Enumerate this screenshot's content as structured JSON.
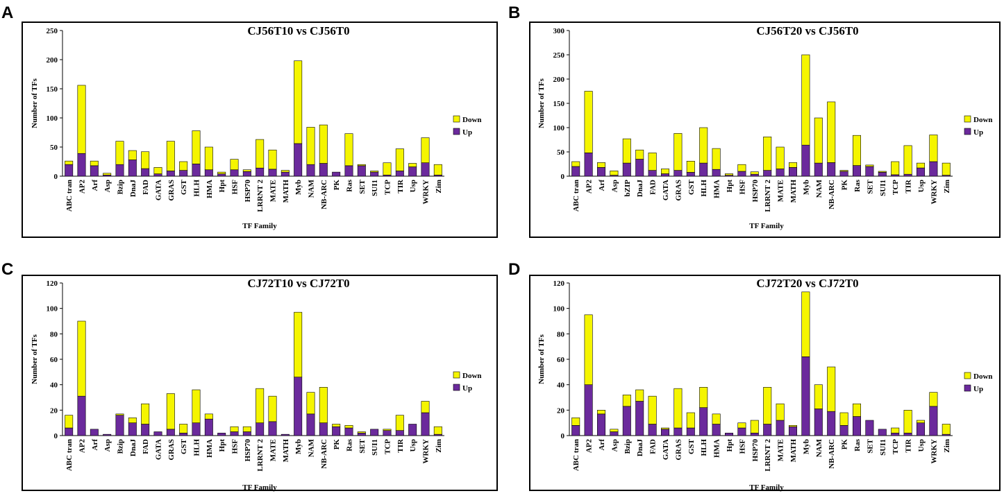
{
  "colors": {
    "up": "#6B2A9C",
    "down": "#F5F500",
    "outline": "#000000"
  },
  "chart_data": [
    {
      "panel": "A",
      "type": "bar",
      "stacked": true,
      "title": "CJ56T10 vs CJ56T0",
      "xlabel": "TF Family",
      "ylabel": "Number of TFs",
      "ylim": [
        0,
        250
      ],
      "ytick_step": 50,
      "legend": {
        "position": "right",
        "labels": [
          "Down",
          "Up"
        ]
      },
      "categories": [
        "ABC tran",
        "AP2",
        "Arf",
        "Asp",
        "Bzip",
        "DnaJ",
        "FAD",
        "GATA",
        "GRAS",
        "GST",
        "HLH",
        "HMA",
        "Hpt",
        "HSF",
        "HSP70",
        "LRRNT 2",
        "MATE",
        "MATH",
        "Myb",
        "NAM",
        "NB-ARC",
        "PK",
        "Ras",
        "SET",
        "SUI1",
        "TCP",
        "TIR",
        "Usp",
        "WRKY",
        "Zim"
      ],
      "series": [
        {
          "name": "Up",
          "values": [
            20,
            39,
            18,
            2,
            20,
            28,
            13,
            4,
            9,
            10,
            21,
            11,
            4,
            11,
            8,
            14,
            12,
            7,
            56,
            20,
            22,
            7,
            18,
            18,
            7,
            2,
            9,
            16,
            23,
            2
          ]
        },
        {
          "name": "Down",
          "values": [
            6,
            117,
            8,
            3,
            40,
            16,
            29,
            11,
            51,
            15,
            57,
            39,
            3,
            18,
            3,
            49,
            33,
            3,
            142,
            64,
            66,
            0,
            55,
            2,
            2,
            21,
            38,
            6,
            43,
            18
          ]
        }
      ]
    },
    {
      "panel": "B",
      "type": "bar",
      "stacked": true,
      "title": "CJ56T20 vs CJ56T0",
      "xlabel": "TF Family",
      "ylabel": "Number of TFs",
      "ylim": [
        0,
        300
      ],
      "ytick_step": 50,
      "legend": {
        "position": "right",
        "labels": [
          "Down",
          "Up"
        ]
      },
      "categories": [
        "ABC tran",
        "AP2",
        "Arf",
        "Asp",
        "bZIP",
        "DnaJ",
        "FAD",
        "GATA",
        "GRAS",
        "GST",
        "HLH",
        "HMA",
        "Hpt",
        "HSF",
        "HSP70",
        "LRRNT 2",
        "MATE",
        "MATH",
        "Myb",
        "NAM",
        "NB-ARC",
        "PK",
        "Ras",
        "SET",
        "SUI1",
        "TCP",
        "TIR",
        "Usp",
        "WRKY",
        "Zim"
      ],
      "series": [
        {
          "name": "Up",
          "values": [
            20,
            48,
            18,
            2,
            27,
            35,
            12,
            5,
            12,
            8,
            27,
            14,
            2,
            10,
            4,
            12,
            15,
            18,
            64,
            27,
            28,
            10,
            22,
            20,
            8,
            3,
            4,
            17,
            30,
            2
          ]
        },
        {
          "name": "Down",
          "values": [
            10,
            127,
            10,
            9,
            50,
            19,
            36,
            10,
            76,
            23,
            73,
            43,
            3,
            14,
            5,
            69,
            45,
            10,
            186,
            93,
            125,
            2,
            62,
            3,
            2,
            27,
            59,
            10,
            55,
            25
          ]
        }
      ]
    },
    {
      "panel": "C",
      "type": "bar",
      "stacked": true,
      "title": "CJ72T10 vs CJ72T0",
      "xlabel": "TF Family",
      "ylabel": "Number of TFs",
      "ylim": [
        0,
        120
      ],
      "ytick_step": 20,
      "legend": {
        "position": "right",
        "labels": [
          "Down",
          "Up"
        ]
      },
      "categories": [
        "ABC tran",
        "AP2",
        "Arf",
        "Asp",
        "Bzip",
        "DnaJ",
        "FAD",
        "GATA",
        "GRAS",
        "GST",
        "HLH",
        "HMA",
        "Hpt",
        "HSF",
        "HSP70",
        "LRRNT 2",
        "MATE",
        "MATH",
        "Myb",
        "NAM",
        "NB-ARC",
        "PK",
        "Ras",
        "SET",
        "SUI1",
        "TCP",
        "TIR",
        "Usp",
        "WRKY",
        "Zim"
      ],
      "series": [
        {
          "name": "Up",
          "values": [
            6,
            31,
            5,
            1,
            16,
            10,
            9,
            3,
            5,
            2,
            10,
            13,
            2,
            3,
            3,
            10,
            11,
            1,
            46,
            17,
            10,
            7,
            6,
            2,
            5,
            4,
            4,
            9,
            18,
            1
          ]
        },
        {
          "name": "Down",
          "values": [
            10,
            59,
            0,
            0,
            1,
            4,
            16,
            0,
            28,
            7,
            26,
            4,
            0,
            4,
            4,
            27,
            20,
            0,
            51,
            17,
            28,
            2,
            2,
            1,
            0,
            1,
            12,
            0,
            9,
            6
          ]
        }
      ]
    },
    {
      "panel": "D",
      "type": "bar",
      "stacked": true,
      "title": "CJ72T20 vs CJ72T0",
      "xlabel": "TF Family",
      "ylabel": "Number of TFs",
      "ylim": [
        0,
        120
      ],
      "ytick_step": 20,
      "legend": {
        "position": "right",
        "labels": [
          "Down",
          "Up"
        ]
      },
      "categories": [
        "ABC tran",
        "AP2",
        "Arf",
        "Asp",
        "Bzip",
        "DnaJ",
        "FAD",
        "GATA",
        "GRAS",
        "GST",
        "HLH",
        "HMA",
        "Hpt",
        "HSF",
        "HSP70",
        "LRRNT 2",
        "MATE",
        "MATH",
        "Myb",
        "NAM",
        "NB-ARC",
        "PK",
        "Ras",
        "SET",
        "SUI1",
        "TCP",
        "TIR",
        "Usp",
        "WRKY",
        "Zim"
      ],
      "series": [
        {
          "name": "Up",
          "values": [
            8,
            40,
            17,
            3,
            23,
            27,
            9,
            5,
            6,
            6,
            22,
            9,
            2,
            6,
            2,
            9,
            12,
            7,
            62,
            21,
            19,
            8,
            15,
            12,
            5,
            2,
            2,
            10,
            23,
            1
          ]
        },
        {
          "name": "Down",
          "values": [
            6,
            55,
            3,
            2,
            9,
            9,
            22,
            1,
            31,
            12,
            16,
            8,
            0,
            4,
            10,
            29,
            13,
            1,
            51,
            19,
            35,
            10,
            10,
            0,
            0,
            4,
            18,
            2,
            11,
            8
          ]
        }
      ]
    }
  ]
}
